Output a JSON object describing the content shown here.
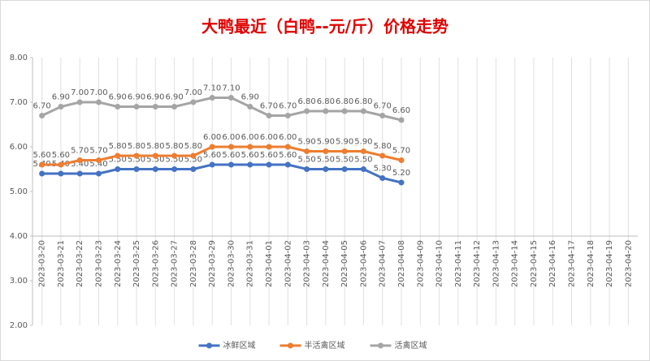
{
  "chart_data": {
    "type": "line",
    "title": "大鸭最近（白鸭--元/斤）价格走势",
    "categories": [
      "2023-03-20",
      "2023-03-21",
      "2023-03-22",
      "2023-03-23",
      "2023-03-24",
      "2023-03-25",
      "2023-03-26",
      "2023-03-27",
      "2023-03-28",
      "2023-03-29",
      "2023-03-30",
      "2023-03-31",
      "2023-04-01",
      "2023-04-02",
      "2023-04-03",
      "2023-04-04",
      "2023-04-05",
      "2023-04-06",
      "2023-04-07",
      "2023-04-08",
      "2023-04-09",
      "2023-04-10",
      "2023-04-11",
      "2023-04-12",
      "2023-04-13",
      "2023-04-14",
      "2023-04-15",
      "2023-04-16",
      "2023-04-17",
      "2023-04-18",
      "2023-04-19",
      "2023-04-20"
    ],
    "series": [
      {
        "name": "冰鲜区域",
        "color": "#4472c4",
        "values": [
          5.4,
          5.4,
          5.4,
          5.4,
          5.5,
          5.5,
          5.5,
          5.5,
          5.5,
          5.6,
          5.6,
          5.6,
          5.6,
          5.6,
          5.5,
          5.5,
          5.5,
          5.5,
          5.3,
          5.2,
          null,
          null,
          null,
          null,
          null,
          null,
          null,
          null,
          null,
          null,
          null,
          null
        ],
        "value_labels": [
          "5.40",
          "5.40",
          "5.40",
          "5.40",
          "5.50",
          "5.50",
          "5.50",
          "5.50",
          "5.50",
          "5.60",
          "5.60",
          "5.60",
          "5.60",
          "5.60",
          "5.50",
          "5.50",
          "5.50",
          "5.50",
          "5.30",
          "5.20",
          null,
          null,
          null,
          null,
          null,
          null,
          null,
          null,
          null,
          null,
          null,
          null
        ]
      },
      {
        "name": "半活禽区域",
        "color": "#ed7d31",
        "values": [
          5.6,
          5.6,
          5.7,
          5.7,
          5.8,
          5.8,
          5.8,
          5.8,
          5.8,
          6.0,
          6.0,
          6.0,
          6.0,
          6.0,
          5.9,
          5.9,
          5.9,
          5.9,
          5.8,
          5.7,
          null,
          null,
          null,
          null,
          null,
          null,
          null,
          null,
          null,
          null,
          null,
          null
        ],
        "value_labels": [
          "5.60",
          "5.60",
          "5.70",
          "5.70",
          "5.80",
          "5.80",
          "5.80",
          "5.80",
          "5.80",
          "6.00",
          "6.00",
          "6.00",
          "6.00",
          "6.00",
          "5.90",
          "5.90",
          "5.90",
          "5.90",
          "5.80",
          "5.70",
          null,
          null,
          null,
          null,
          null,
          null,
          null,
          null,
          null,
          null,
          null,
          null
        ]
      },
      {
        "name": "活禽区域",
        "color": "#a5a5a5",
        "values": [
          6.7,
          6.9,
          7.0,
          7.0,
          6.9,
          6.9,
          6.9,
          6.9,
          7.0,
          7.1,
          7.1,
          6.9,
          6.7,
          6.7,
          6.8,
          6.8,
          6.8,
          6.8,
          6.7,
          6.6,
          null,
          null,
          null,
          null,
          null,
          null,
          null,
          null,
          null,
          null,
          null,
          null
        ],
        "value_labels": [
          "6.70",
          "6.90",
          "7.00",
          "7.00",
          "6.90",
          "6.90",
          "6.90",
          "6.90",
          "7.00",
          "7.10",
          "7.10",
          "6.90",
          "6.70",
          "6.70",
          "6.80",
          "6.80",
          "6.80",
          "6.80",
          "6.70",
          "6.60",
          null,
          null,
          null,
          null,
          null,
          null,
          null,
          null,
          null,
          null,
          null,
          null
        ]
      }
    ],
    "ylim": [
      2,
      8
    ],
    "yticks": [
      {
        "value": 2,
        "label": "2.00"
      },
      {
        "value": 3,
        "label": "3.00"
      },
      {
        "value": 4,
        "label": "4.00"
      },
      {
        "value": 5,
        "label": "5.00"
      },
      {
        "value": 6,
        "label": "6.00"
      },
      {
        "value": 7,
        "label": "7.00"
      },
      {
        "value": 8,
        "label": "8.00"
      }
    ],
    "xaxis_at": 4,
    "xgrid": true,
    "legend": "bottom"
  }
}
